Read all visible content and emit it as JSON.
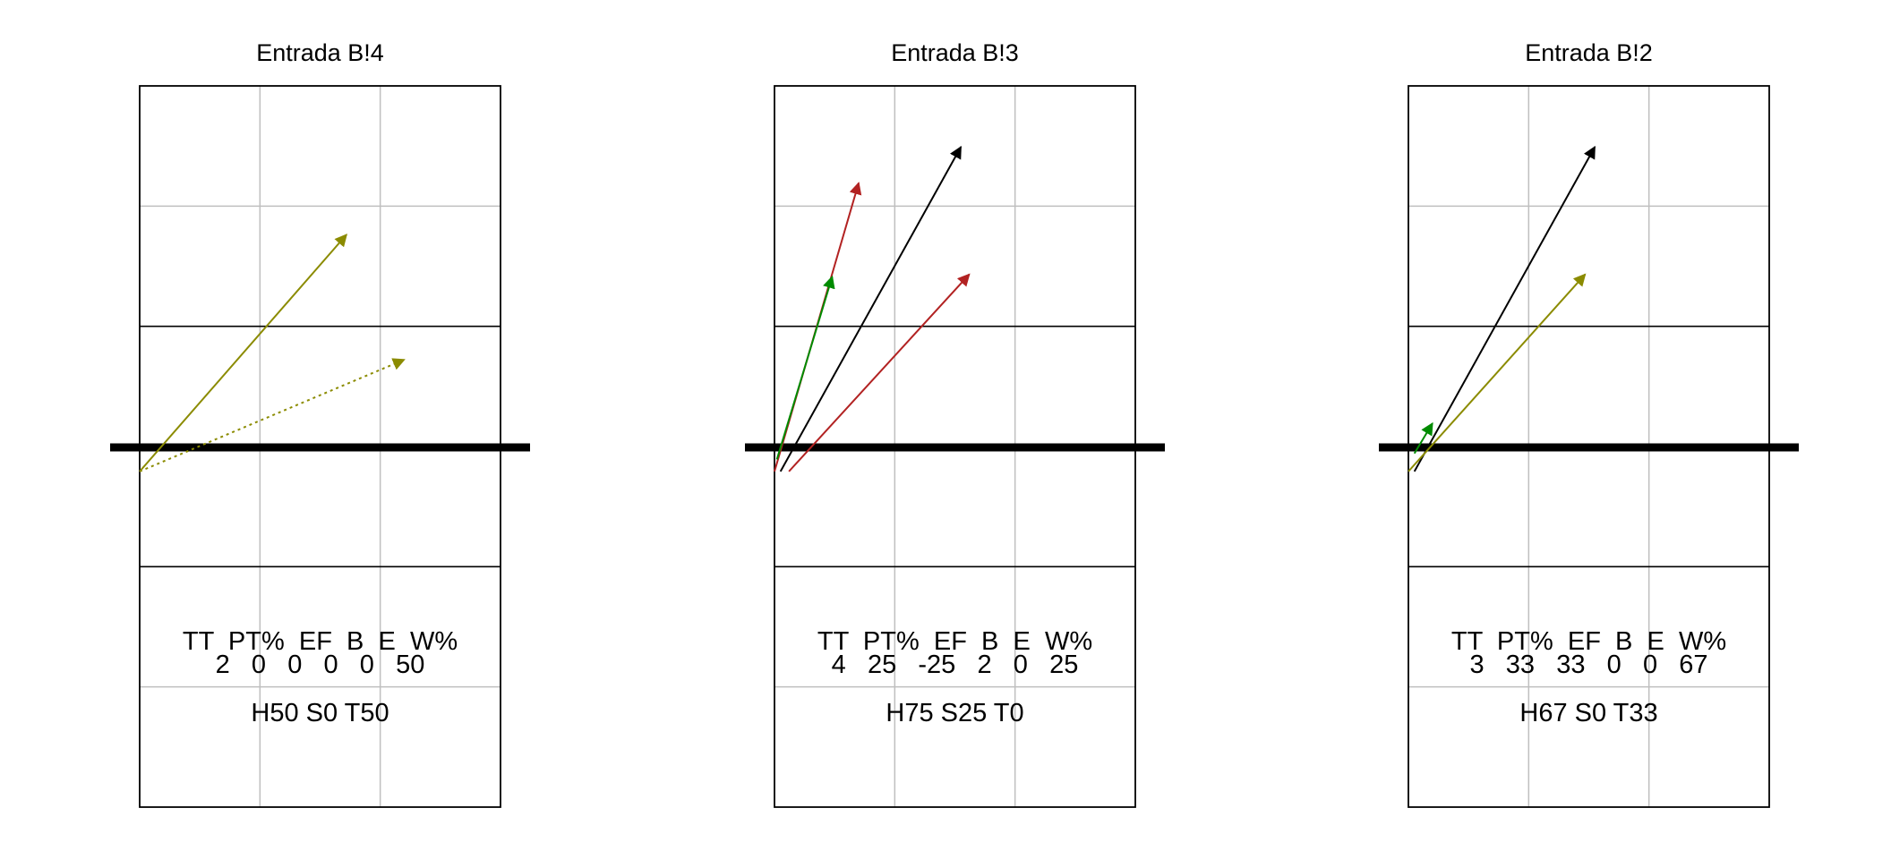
{
  "colors": {
    "court_outline": "#000000",
    "grid": "#bfbfbf",
    "net": "#000000",
    "olive": "#8b8b00",
    "red": "#b22222",
    "green": "#008b00",
    "black": "#000000"
  },
  "panels": [
    {
      "title": "Entrada B!4",
      "stats": {
        "labels": [
          "TT",
          "PT%",
          "EF",
          "B",
          "E",
          "W%"
        ],
        "values": [
          "2",
          "0",
          "0",
          "0",
          "0",
          "50"
        ]
      },
      "zones_text": "H50 S0 T50",
      "arrows": [
        {
          "color": "olive",
          "style": "solid",
          "from": [
            0.0,
            -0.2
          ],
          "to": [
            1.72,
            1.77
          ]
        },
        {
          "color": "olive",
          "style": "dotted",
          "from": [
            0.0,
            -0.2
          ],
          "to": [
            2.2,
            0.73
          ]
        }
      ]
    },
    {
      "title": "Entrada B!3",
      "stats": {
        "labels": [
          "TT",
          "PT%",
          "EF",
          "B",
          "E",
          "W%"
        ],
        "values": [
          "4",
          "25",
          "-25",
          "2",
          "0",
          "25"
        ]
      },
      "zones_text": "H75 S25 T0",
      "arrows": [
        {
          "color": "red",
          "style": "solid",
          "from": [
            0.0,
            -0.2
          ],
          "to": [
            0.7,
            2.2
          ]
        },
        {
          "color": "black",
          "style": "solid",
          "from": [
            0.05,
            -0.2
          ],
          "to": [
            1.55,
            2.5
          ]
        },
        {
          "color": "red",
          "style": "solid",
          "from": [
            0.12,
            -0.2
          ],
          "to": [
            1.62,
            1.44
          ]
        },
        {
          "color": "green",
          "style": "solid",
          "from": [
            0.02,
            -0.1
          ],
          "to": [
            0.48,
            1.42
          ]
        }
      ]
    },
    {
      "title": "Entrada B!2",
      "stats": {
        "labels": [
          "TT",
          "PT%",
          "EF",
          "B",
          "E",
          "W%"
        ],
        "values": [
          "3",
          "33",
          "33",
          "0",
          "0",
          "67"
        ]
      },
      "zones_text": "H67 S0 T33",
      "arrows": [
        {
          "color": "black",
          "style": "solid",
          "from": [
            0.05,
            -0.2
          ],
          "to": [
            1.55,
            2.5
          ]
        },
        {
          "color": "olive",
          "style": "solid",
          "from": [
            0.0,
            -0.2
          ],
          "to": [
            1.47,
            1.44
          ]
        },
        {
          "color": "green",
          "style": "solid",
          "from": [
            0.05,
            -0.05
          ],
          "to": [
            0.2,
            0.2
          ]
        }
      ]
    }
  ]
}
